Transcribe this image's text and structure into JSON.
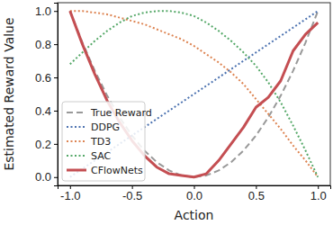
{
  "chart_data": {
    "type": "line",
    "x_label": "Action",
    "y_label": "Estimated Reward Value",
    "x": [
      -1.0,
      -0.9,
      -0.8,
      -0.7,
      -0.6,
      -0.5,
      -0.4,
      -0.3,
      -0.2,
      -0.1,
      0.0,
      0.1,
      0.2,
      0.3,
      0.4,
      0.5,
      0.6,
      0.7,
      0.8,
      0.9,
      1.0
    ],
    "series": [
      {
        "name": "True Reward",
        "color": "#999999",
        "line_style": "dashed",
        "values": [
          1.0,
          0.81,
          0.64,
          0.49,
          0.36,
          0.25,
          0.16,
          0.09,
          0.04,
          0.01,
          0.0,
          0.01,
          0.04,
          0.09,
          0.16,
          0.25,
          0.36,
          0.49,
          0.64,
          0.81,
          1.0
        ]
      },
      {
        "name": "DDPG",
        "color": "#4c72b0",
        "line_style": "dotted",
        "values": [
          0.0,
          0.05,
          0.1,
          0.15,
          0.2,
          0.25,
          0.3,
          0.35,
          0.4,
          0.45,
          0.5,
          0.55,
          0.6,
          0.65,
          0.7,
          0.75,
          0.8,
          0.85,
          0.9,
          0.95,
          1.0
        ]
      },
      {
        "name": "TD3",
        "color": "#dd8452",
        "line_style": "dotted",
        "values": [
          1.0,
          1.0,
          0.99,
          0.98,
          0.96,
          0.94,
          0.92,
          0.89,
          0.86,
          0.83,
          0.79,
          0.74,
          0.69,
          0.63,
          0.56,
          0.47,
          0.38,
          0.29,
          0.19,
          0.1,
          0.0
        ]
      },
      {
        "name": "SAC",
        "color": "#55a868",
        "line_style": "dotted",
        "values": [
          0.68,
          0.75,
          0.82,
          0.88,
          0.93,
          0.97,
          0.99,
          1.0,
          1.0,
          0.99,
          0.97,
          0.93,
          0.88,
          0.82,
          0.75,
          0.67,
          0.57,
          0.45,
          0.31,
          0.16,
          0.0
        ]
      },
      {
        "name": "CFlowNets",
        "color": "#c44e52",
        "line_style": "solid",
        "values": [
          1.0,
          0.8,
          0.62,
          0.46,
          0.33,
          0.22,
          0.13,
          0.06,
          0.02,
          0.01,
          0.0,
          0.02,
          0.1,
          0.2,
          0.3,
          0.42,
          0.48,
          0.58,
          0.76,
          0.86,
          0.93
        ]
      }
    ],
    "xlim": [
      -1.1,
      1.1
    ],
    "xticks": [
      {
        "value": -1.0,
        "label": "-1.0"
      },
      {
        "value": -0.5,
        "label": "-0.5"
      },
      {
        "value": 0.0,
        "label": "0.0"
      },
      {
        "value": 0.5,
        "label": "0.5"
      },
      {
        "value": 1.0,
        "label": "1.0"
      }
    ],
    "ylim": [
      -0.05,
      1.05
    ],
    "yticks": [
      {
        "value": 0.0,
        "label": "0.0"
      },
      {
        "value": 0.2,
        "label": "0.2"
      },
      {
        "value": 0.4,
        "label": "0.4"
      },
      {
        "value": 0.6,
        "label": "0.6"
      },
      {
        "value": 0.8,
        "label": "0.8"
      },
      {
        "value": 1.0,
        "label": "1.0"
      }
    ],
    "legend": "lower left",
    "grid": false
  }
}
